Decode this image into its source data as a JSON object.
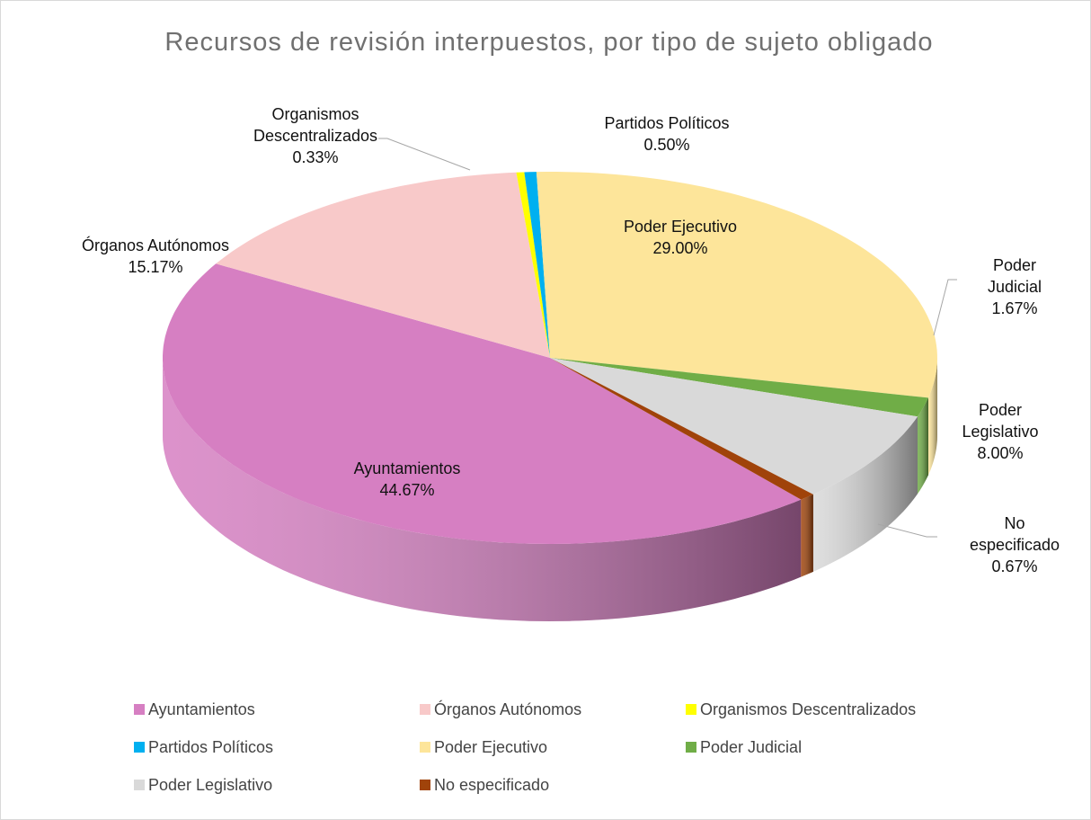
{
  "chart_data": {
    "type": "pie",
    "title": "Recursos de revisión interpuestos, por tipo de sujeto obligado",
    "categories": [
      "Ayuntamientos",
      "Órganos Autónomos",
      "Organismos Descentralizados",
      "Partidos Políticos",
      "Poder Ejecutivo",
      "Poder Judicial",
      "Poder Legislativo",
      "No especificado"
    ],
    "values": [
      44.67,
      15.17,
      0.33,
      0.5,
      29.0,
      1.67,
      8.0,
      0.67
    ],
    "value_labels": [
      "44.67%",
      "15.17%",
      "0.33%",
      "0.50%",
      "29.00%",
      "1.67%",
      "8.00%",
      "0.67%"
    ],
    "colors": [
      "#d67fc2",
      "#f8c9c9",
      "#ffff00",
      "#00b0f0",
      "#fde59a",
      "#70ad47",
      "#d9d9d9",
      "#a0430a"
    ],
    "legend": "bottom"
  }
}
